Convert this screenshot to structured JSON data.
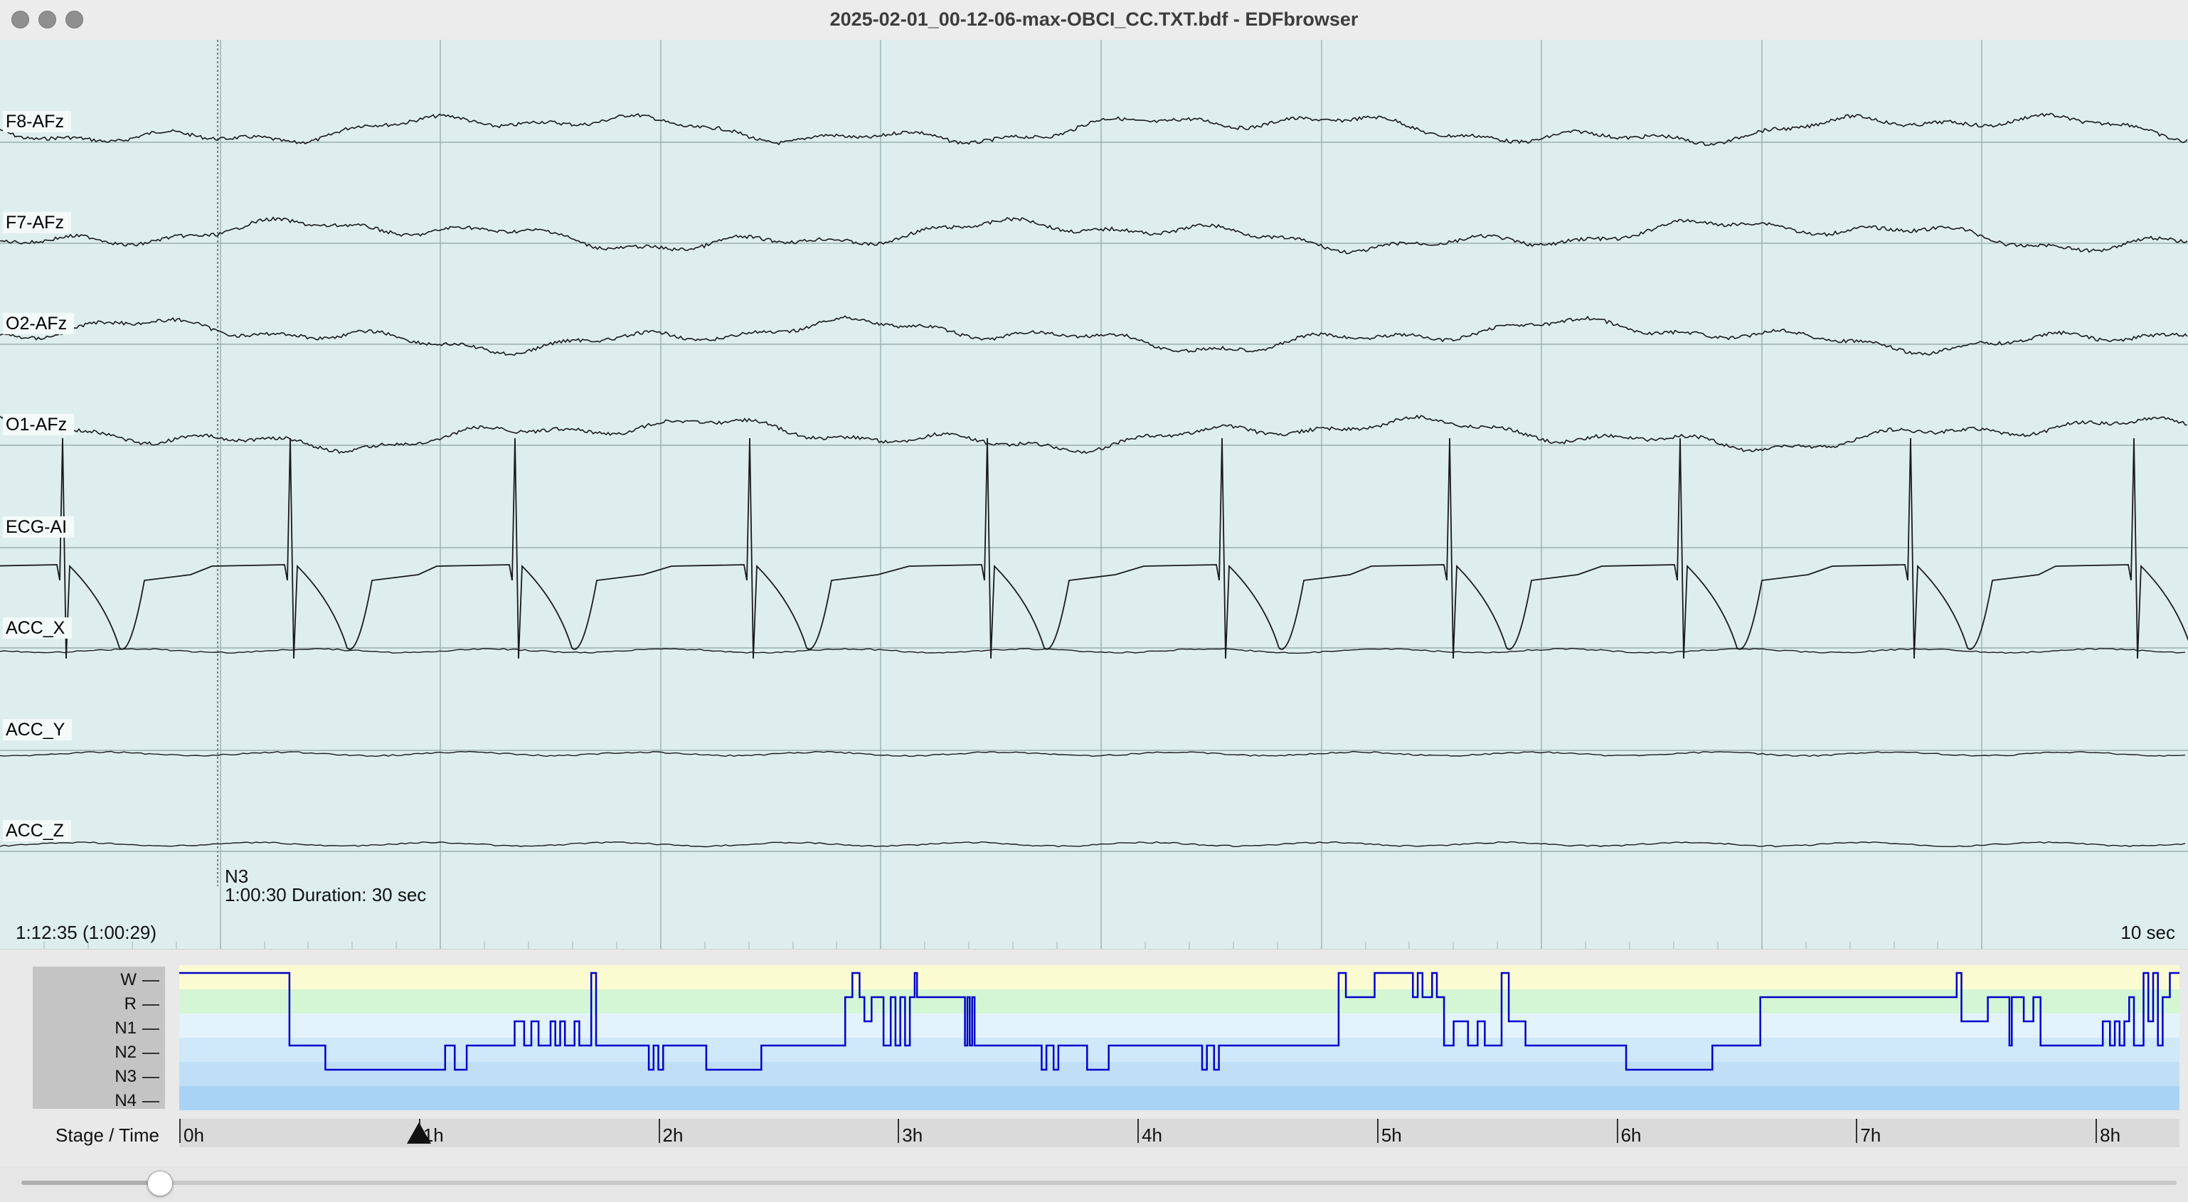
{
  "window": {
    "title": "2025-02-01_00-12-06-max-OBCI_CC.TXT.bdf - EDFbrowser",
    "traffic_color": "#8f8f8f"
  },
  "signals": {
    "background": "#deeeee",
    "channels": [
      {
        "label": "F8-AFz",
        "kind": "eeg"
      },
      {
        "label": "F7-AFz",
        "kind": "eeg"
      },
      {
        "label": "O2-AFz",
        "kind": "eeg"
      },
      {
        "label": "O1-AFz",
        "kind": "eeg"
      },
      {
        "label": "ECG-AI",
        "kind": "ecg"
      },
      {
        "label": "ACC_X",
        "kind": "acc"
      },
      {
        "label": "ACC_Y",
        "kind": "acc"
      },
      {
        "label": "ACC_Z",
        "kind": "acc"
      }
    ],
    "annotation": {
      "stage": "N3",
      "detail": "1:00:30 Duration: 30 sec"
    },
    "time_position": "1:12:35 (1:00:29)",
    "timescale": "10 sec"
  },
  "hypnogram": {
    "stages": [
      "W",
      "R",
      "N1",
      "N2",
      "N3",
      "N4"
    ],
    "stage_colors": [
      "#fbfbd2",
      "#d4f6d4",
      "#e3f3fb",
      "#cfe8fa",
      "#bfdff7",
      "#a9d3f5"
    ],
    "line_color": "#0000cc",
    "axis_title": "Stage / Time",
    "hour_labels": [
      "0h",
      "1h",
      "2h",
      "3h",
      "4h",
      "5h",
      "6h",
      "7h",
      "8h"
    ],
    "hours_visible": 8.35,
    "epoch_sequence": [
      [
        0,
        0.46,
        "W"
      ],
      [
        0.46,
        0.61,
        "N2"
      ],
      [
        0.61,
        1.11,
        "N3"
      ],
      [
        1.11,
        1.15,
        "N2"
      ],
      [
        1.15,
        1.2,
        "N3"
      ],
      [
        1.2,
        1.4,
        "N2"
      ],
      [
        1.4,
        1.44,
        "N1"
      ],
      [
        1.44,
        1.47,
        "N2"
      ],
      [
        1.47,
        1.5,
        "N1"
      ],
      [
        1.5,
        1.55,
        "N2"
      ],
      [
        1.55,
        1.57,
        "N1"
      ],
      [
        1.57,
        1.59,
        "N2"
      ],
      [
        1.59,
        1.61,
        "N1"
      ],
      [
        1.61,
        1.65,
        "N2"
      ],
      [
        1.65,
        1.67,
        "N1"
      ],
      [
        1.67,
        1.72,
        "N2"
      ],
      [
        1.72,
        1.74,
        "W"
      ],
      [
        1.74,
        1.96,
        "N2"
      ],
      [
        1.96,
        1.98,
        "N3"
      ],
      [
        1.98,
        2.0,
        "N2"
      ],
      [
        2.0,
        2.02,
        "N3"
      ],
      [
        2.02,
        2.2,
        "N2"
      ],
      [
        2.2,
        2.43,
        "N3"
      ],
      [
        2.43,
        2.78,
        "N2"
      ],
      [
        2.78,
        2.81,
        "R"
      ],
      [
        2.81,
        2.84,
        "W"
      ],
      [
        2.84,
        2.86,
        "R"
      ],
      [
        2.86,
        2.89,
        "N1"
      ],
      [
        2.89,
        2.94,
        "R"
      ],
      [
        2.94,
        2.97,
        "N2"
      ],
      [
        2.97,
        2.99,
        "R"
      ],
      [
        2.99,
        3.01,
        "N2"
      ],
      [
        3.01,
        3.03,
        "R"
      ],
      [
        3.03,
        3.05,
        "N2"
      ],
      [
        3.05,
        3.07,
        "R"
      ],
      [
        3.07,
        3.08,
        "W"
      ],
      [
        3.08,
        3.28,
        "R"
      ],
      [
        3.28,
        3.29,
        "N2"
      ],
      [
        3.29,
        3.3,
        "R"
      ],
      [
        3.3,
        3.31,
        "N2"
      ],
      [
        3.31,
        3.32,
        "R"
      ],
      [
        3.32,
        3.6,
        "N2"
      ],
      [
        3.6,
        3.62,
        "N3"
      ],
      [
        3.62,
        3.65,
        "N2"
      ],
      [
        3.65,
        3.67,
        "N3"
      ],
      [
        3.67,
        3.79,
        "N2"
      ],
      [
        3.79,
        3.88,
        "N3"
      ],
      [
        3.88,
        4.27,
        "N2"
      ],
      [
        4.27,
        4.29,
        "N3"
      ],
      [
        4.29,
        4.32,
        "N2"
      ],
      [
        4.32,
        4.34,
        "N3"
      ],
      [
        4.34,
        4.84,
        "N2"
      ],
      [
        4.84,
        4.87,
        "W"
      ],
      [
        4.87,
        4.99,
        "R"
      ],
      [
        4.99,
        5.15,
        "W"
      ],
      [
        5.15,
        5.17,
        "R"
      ],
      [
        5.17,
        5.19,
        "W"
      ],
      [
        5.19,
        5.23,
        "R"
      ],
      [
        5.23,
        5.25,
        "W"
      ],
      [
        5.25,
        5.28,
        "R"
      ],
      [
        5.28,
        5.32,
        "N2"
      ],
      [
        5.32,
        5.38,
        "N1"
      ],
      [
        5.38,
        5.42,
        "N2"
      ],
      [
        5.42,
        5.45,
        "N1"
      ],
      [
        5.45,
        5.52,
        "N2"
      ],
      [
        5.52,
        5.55,
        "W"
      ],
      [
        5.55,
        5.62,
        "N1"
      ],
      [
        5.62,
        6.04,
        "N2"
      ],
      [
        6.04,
        6.4,
        "N3"
      ],
      [
        6.4,
        6.6,
        "N2"
      ],
      [
        6.6,
        7.42,
        "R"
      ],
      [
        7.42,
        7.44,
        "W"
      ],
      [
        7.44,
        7.55,
        "N1"
      ],
      [
        7.55,
        7.64,
        "R"
      ],
      [
        7.64,
        7.65,
        "N2"
      ],
      [
        7.65,
        7.7,
        "R"
      ],
      [
        7.7,
        7.74,
        "N1"
      ],
      [
        7.74,
        7.77,
        "R"
      ],
      [
        7.77,
        7.84,
        "N2"
      ],
      [
        7.84,
        8.03,
        "N2"
      ],
      [
        8.03,
        8.06,
        "N1"
      ],
      [
        8.06,
        8.08,
        "N2"
      ],
      [
        8.08,
        8.1,
        "N1"
      ],
      [
        8.1,
        8.12,
        "N2"
      ],
      [
        8.12,
        8.14,
        "N1"
      ],
      [
        8.14,
        8.16,
        "R"
      ],
      [
        8.16,
        8.2,
        "N2"
      ],
      [
        8.2,
        8.22,
        "W"
      ],
      [
        8.22,
        8.24,
        "N1"
      ],
      [
        8.24,
        8.26,
        "W"
      ],
      [
        8.26,
        8.28,
        "N2"
      ],
      [
        8.28,
        8.31,
        "R"
      ],
      [
        8.31,
        8.35,
        "W"
      ]
    ],
    "cursor_hours": 1.0
  },
  "scrollbar": {
    "position_fraction": 0.064
  }
}
